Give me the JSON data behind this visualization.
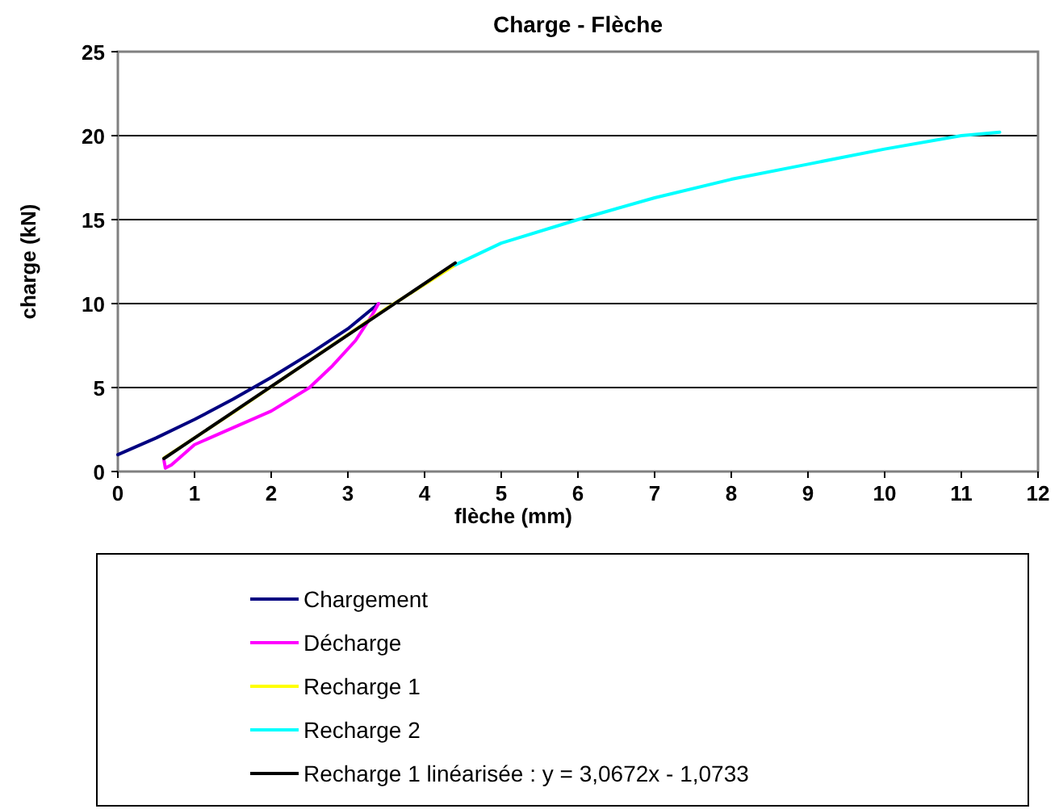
{
  "chart_data": {
    "type": "line",
    "title": "Charge - Flèche",
    "xlabel": "flèche (mm)",
    "ylabel": "charge (kN)",
    "xlim": [
      0,
      12
    ],
    "xticks": [
      0,
      1,
      2,
      3,
      4,
      5,
      6,
      7,
      8,
      9,
      10,
      11,
      12
    ],
    "ylim": [
      0,
      25
    ],
    "yticks": [
      0,
      5,
      10,
      15,
      20,
      25
    ],
    "grid": "y",
    "legend": "bottom",
    "marker": "none",
    "line_style": "solid",
    "series": [
      {
        "name": "Chargement",
        "color": "#000080",
        "x": [
          0,
          0.5,
          1,
          1.5,
          2,
          2.5,
          3,
          3.4
        ],
        "values": [
          1,
          2,
          3.1,
          4.3,
          5.6,
          7,
          8.5,
          10
        ]
      },
      {
        "name": "Décharge",
        "color": "#ff00ff",
        "x": [
          3.4,
          3.3,
          3.1,
          2.8,
          2.5,
          2,
          1.5,
          1,
          0.7,
          0.62,
          0.6
        ],
        "values": [
          10,
          9.2,
          7.8,
          6.3,
          5,
          3.6,
          2.6,
          1.6,
          0.4,
          0.2,
          0.7
        ]
      },
      {
        "name": "Recharge 1",
        "color": "#ffff00",
        "x": [
          0.6,
          1.5,
          2.5,
          3.5,
          4.4
        ],
        "values": [
          0.8,
          3.5,
          6.6,
          9.7,
          12.3
        ]
      },
      {
        "name": "Recharge 2",
        "color": "#00ffff",
        "x": [
          4.4,
          5,
          6,
          7,
          8,
          9,
          10,
          11,
          11.5
        ],
        "values": [
          12.3,
          13.6,
          15,
          16.3,
          17.4,
          18.3,
          19.2,
          20,
          20.2
        ]
      },
      {
        "name": "Recharge 1 linéarisée : y = 3,0672x - 1,0733",
        "color": "#000000",
        "x": [
          0.6,
          4.4
        ],
        "values": [
          0.77,
          12.42
        ]
      }
    ]
  }
}
